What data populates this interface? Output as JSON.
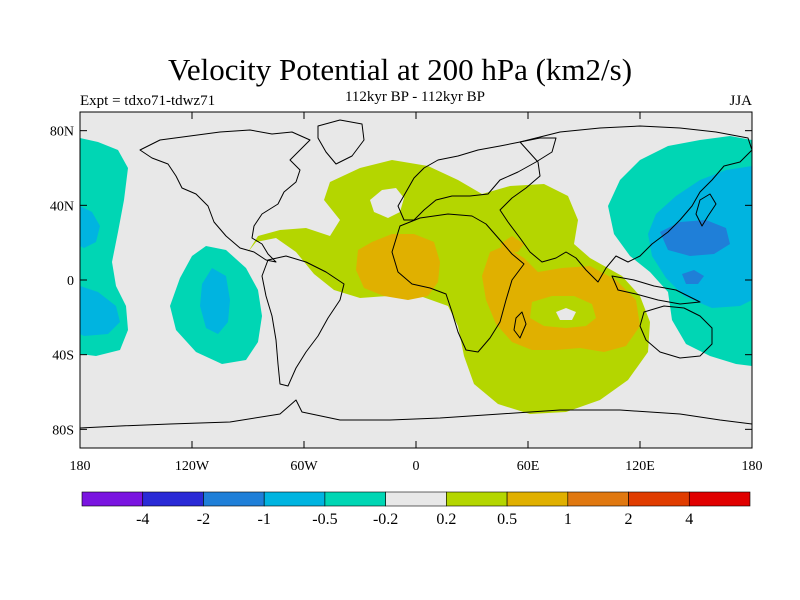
{
  "header": {
    "title": "Velocity Potential at 200 hPa (km2/s)",
    "subtitle": "112kyr BP - 112kyr BP",
    "experiment": "Expt = tdxo71-tdwz71",
    "season": "JJA"
  },
  "axes": {
    "lat_labels": [
      "80N",
      "40N",
      "0",
      "40S",
      "80S"
    ],
    "lat_values": [
      80,
      40,
      0,
      -40,
      -80
    ],
    "lon_labels": [
      "180",
      "120W",
      "60W",
      "0",
      "60E",
      "120E",
      "180"
    ],
    "lon_values": [
      -180,
      -120,
      -60,
      0,
      60,
      120,
      180
    ]
  },
  "colorbar": {
    "labels": [
      "-4",
      "-2",
      "-1",
      "-0.5",
      "-0.2",
      "0.2",
      "0.5",
      "1",
      "2",
      "4"
    ],
    "colors": [
      "#7a14e0",
      "#2a2ad6",
      "#1f7fd8",
      "#00b4e0",
      "#00d6b4",
      "#e8e8e8",
      "#b4d600",
      "#e0b000",
      "#e07810",
      "#e03c00",
      "#e00000"
    ]
  },
  "fill_colors": {
    "ocean_bg": "#e8e8e8",
    "pos_02": "#b4d600",
    "pos_05": "#e0b000",
    "neg_02": "#00d6b4",
    "neg_05": "#00b4e0",
    "neg_1": "#1f7fd8"
  }
}
